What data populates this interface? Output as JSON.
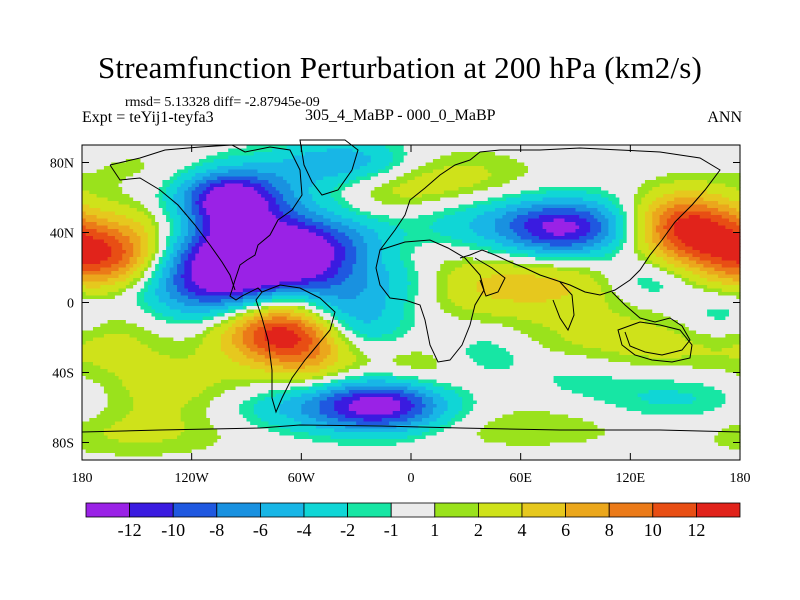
{
  "chart_data": {
    "type": "heatmap",
    "title": "Streamfunction Perturbation at 200 hPa (km2/s)",
    "stats": "rmsd= 5.13328 diff= -2.87945e-09",
    "experiment": "Expt = teYij1-teyfa3",
    "case": "305_4_MaBP - 000_0_MaBP",
    "season": "ANN",
    "xlabel": "",
    "ylabel": "",
    "xlim": [
      -180,
      180
    ],
    "ylim": [
      -90,
      90
    ],
    "x_ticks": [
      {
        "value": -180,
        "label": "180"
      },
      {
        "value": -120,
        "label": "120W"
      },
      {
        "value": -60,
        "label": "60W"
      },
      {
        "value": 0,
        "label": "0"
      },
      {
        "value": 60,
        "label": "60E"
      },
      {
        "value": 120,
        "label": "120E"
      },
      {
        "value": 180,
        "label": "180"
      }
    ],
    "y_ticks": [
      {
        "value": 80,
        "label": "80N"
      },
      {
        "value": 40,
        "label": "40N"
      },
      {
        "value": 0,
        "label": "0"
      },
      {
        "value": -40,
        "label": "40S"
      },
      {
        "value": -80,
        "label": "80S"
      }
    ],
    "colorbar": {
      "levels": [
        "-12",
        "-10",
        "-8",
        "-6",
        "-4",
        "-2",
        "-1",
        "1",
        "2",
        "4",
        "6",
        "8",
        "10",
        "12"
      ],
      "colors": [
        "#9a22e6",
        "#3a1be0",
        "#1f58e0",
        "#1991e0",
        "#18b6e6",
        "#10d6d6",
        "#17e6a4",
        "#ebebeb",
        "#9ae21c",
        "#cfe21a",
        "#e6c81e",
        "#eba71c",
        "#eb7a18",
        "#e84e14",
        "#e1231b"
      ]
    },
    "features": [
      {
        "lon": -100,
        "lat": 15,
        "value": -13,
        "sx": 38,
        "sy": 17
      },
      {
        "lon": -75,
        "lat": 25,
        "value": -8,
        "sx": 34,
        "sy": 16
      },
      {
        "lon": -65,
        "lat": 35,
        "value": -6,
        "sx": 42,
        "sy": 12
      },
      {
        "lon": -35,
        "lat": -10,
        "value": -6,
        "sx": 22,
        "sy": 14
      },
      {
        "lon": -100,
        "lat": 58,
        "value": -11,
        "sx": 18,
        "sy": 12
      },
      {
        "lon": -90,
        "lat": 63,
        "value": -5,
        "sx": 34,
        "sy": 13
      },
      {
        "lon": -35,
        "lat": 80,
        "value": -6,
        "sx": 26,
        "sy": 9
      },
      {
        "lon": -15,
        "lat": -58,
        "value": -10,
        "sx": 24,
        "sy": 11
      },
      {
        "lon": -40,
        "lat": -60,
        "value": -6,
        "sx": 42,
        "sy": 10
      },
      {
        "lon": 85,
        "lat": 42,
        "value": -9,
        "sx": 22,
        "sy": 11
      },
      {
        "lon": 60,
        "lat": 45,
        "value": -5,
        "sx": 40,
        "sy": 12
      },
      {
        "lon": 130,
        "lat": 12,
        "value": -4,
        "sx": 20,
        "sy": 10
      },
      {
        "lon": -5,
        "lat": 12,
        "value": -3,
        "sx": 20,
        "sy": 10
      },
      {
        "lon": 170,
        "lat": -8,
        "value": -3,
        "sx": 16,
        "sy": 10
      },
      {
        "lon": 145,
        "lat": -55,
        "value": -3,
        "sx": 35,
        "sy": 12
      },
      {
        "lon": 40,
        "lat": -30,
        "value": -3,
        "sx": 18,
        "sy": 10
      },
      {
        "lon": 90,
        "lat": -40,
        "value": -2,
        "sx": 25,
        "sy": 10
      },
      {
        "lon": -160,
        "lat": 25,
        "value": 11,
        "sx": 24,
        "sy": 13
      },
      {
        "lon": -140,
        "lat": 45,
        "value": 3,
        "sx": 30,
        "sy": 12
      },
      {
        "lon": -75,
        "lat": -15,
        "value": 13,
        "sx": 22,
        "sy": 13
      },
      {
        "lon": -55,
        "lat": -25,
        "value": 6,
        "sx": 18,
        "sy": 15
      },
      {
        "lon": -70,
        "lat": 5,
        "value": 3,
        "sx": 15,
        "sy": 7
      },
      {
        "lon": 150,
        "lat": 45,
        "value": 11,
        "sx": 20,
        "sy": 13
      },
      {
        "lon": 170,
        "lat": 30,
        "value": 6,
        "sx": 24,
        "sy": 13
      },
      {
        "lon": 60,
        "lat": 10,
        "value": 5,
        "sx": 50,
        "sy": 12
      },
      {
        "lon": 120,
        "lat": -25,
        "value": 3,
        "sx": 50,
        "sy": 15
      },
      {
        "lon": 0,
        "lat": -40,
        "value": 3,
        "sx": 30,
        "sy": 12
      },
      {
        "lon": -130,
        "lat": -50,
        "value": 3,
        "sx": 35,
        "sy": 14
      },
      {
        "lon": 20,
        "lat": 70,
        "value": 3,
        "sx": 35,
        "sy": 12
      },
      {
        "lon": -20,
        "lat": 60,
        "value": 2,
        "sx": 25,
        "sy": 14
      },
      {
        "lon": -160,
        "lat": -15,
        "value": 2,
        "sx": 25,
        "sy": 15
      },
      {
        "lon": -150,
        "lat": -75,
        "value": 2,
        "sx": 40,
        "sy": 10
      },
      {
        "lon": 60,
        "lat": -70,
        "value": 2,
        "sx": 60,
        "sy": 10
      },
      {
        "lon": -130,
        "lat": 75,
        "value": 2,
        "sx": 35,
        "sy": 10
      },
      {
        "lon": 0,
        "lat": 30,
        "value": 2,
        "sx": 25,
        "sy": 10
      }
    ]
  }
}
